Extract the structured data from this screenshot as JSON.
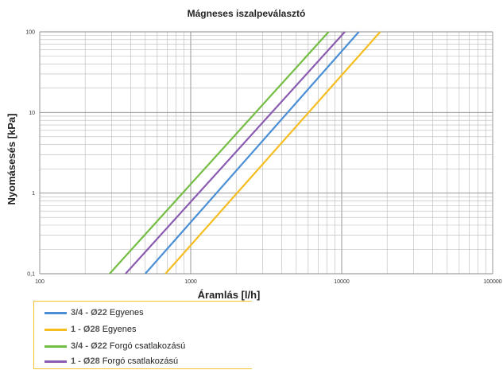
{
  "chart_data": {
    "type": "line",
    "title": "Mágneses iszalpeválasztó",
    "xlabel": "Áramlás [l/h]",
    "ylabel": "Nyomásesés [kPa]",
    "x_scale": "log",
    "y_scale": "log",
    "xlim": [
      100,
      100000
    ],
    "ylim": [
      0.1,
      100
    ],
    "x_ticks": [
      "100",
      "1000",
      "10000",
      "100000"
    ],
    "y_ticks": [
      "0,1",
      "1",
      "10",
      "100"
    ],
    "grid": true,
    "legend_position": "bottom-left",
    "series": [
      {
        "code": "3/4 - Ø22",
        "name": "Egyenes",
        "color": "#4a8fd6",
        "x": [
          500,
          13000
        ],
        "y": [
          0.1,
          100
        ]
      },
      {
        "code": "1 - Ø28",
        "name": "Egyenes",
        "color": "#f6bd1e",
        "x": [
          680,
          18000
        ],
        "y": [
          0.1,
          100
        ]
      },
      {
        "code": "3/4 - Ø22",
        "name": "Forgó csatlakozású",
        "color": "#73bd43",
        "x": [
          290,
          8200
        ],
        "y": [
          0.1,
          100
        ]
      },
      {
        "code": "1 - Ø28",
        "name": "Forgó csatlakozású",
        "color": "#8a5bb0",
        "x": [
          370,
          10500
        ],
        "y": [
          0.1,
          100
        ]
      }
    ]
  }
}
